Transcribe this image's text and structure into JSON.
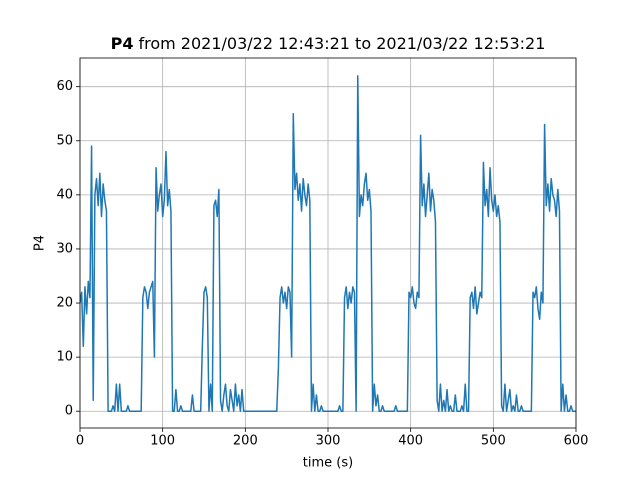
{
  "chart_data": {
    "type": "line",
    "title_bold": "P4",
    "title": "from 2021/03/22 12:43:21 to 2021/03/22 12:53:21",
    "xlabel": "time (s)",
    "ylabel": "P4",
    "xlim": [
      0,
      600
    ],
    "ylim": [
      -3.1,
      65.3
    ],
    "xticks": [
      0,
      100,
      200,
      300,
      400,
      500,
      600
    ],
    "yticks": [
      0,
      10,
      20,
      30,
      40,
      50,
      60
    ],
    "grid": true,
    "x": [
      0,
      2,
      4,
      6,
      8,
      10,
      12,
      14,
      16,
      18,
      20,
      22,
      24,
      26,
      28,
      30,
      32,
      34,
      36,
      38,
      40,
      42,
      44,
      46,
      48,
      50,
      52,
      54,
      56,
      58,
      60,
      62,
      64,
      66,
      68,
      70,
      72,
      74,
      76,
      78,
      80,
      82,
      84,
      86,
      88,
      90,
      92,
      94,
      96,
      98,
      100,
      102,
      104,
      106,
      108,
      110,
      112,
      114,
      116,
      118,
      120,
      122,
      124,
      126,
      128,
      130,
      132,
      134,
      136,
      138,
      140,
      142,
      144,
      146,
      148,
      150,
      152,
      154,
      156,
      158,
      160,
      162,
      164,
      166,
      168,
      170,
      172,
      174,
      176,
      178,
      180,
      182,
      184,
      186,
      188,
      190,
      192,
      194,
      196,
      198,
      200,
      202,
      204,
      206,
      208,
      210,
      212,
      214,
      216,
      218,
      220,
      222,
      224,
      226,
      228,
      230,
      232,
      234,
      236,
      238,
      240,
      242,
      244,
      246,
      248,
      250,
      252,
      254,
      256,
      258,
      260,
      262,
      264,
      266,
      268,
      270,
      272,
      274,
      276,
      278,
      280,
      282,
      284,
      286,
      288,
      290,
      292,
      294,
      296,
      298,
      300,
      302,
      304,
      306,
      308,
      310,
      312,
      314,
      316,
      318,
      320,
      322,
      324,
      326,
      328,
      330,
      332,
      334,
      336,
      338,
      340,
      342,
      344,
      346,
      348,
      350,
      352,
      354,
      356,
      358,
      360,
      362,
      364,
      366,
      368,
      370,
      372,
      374,
      376,
      378,
      380,
      382,
      384,
      386,
      388,
      390,
      392,
      394,
      396,
      398,
      400,
      402,
      404,
      406,
      408,
      410,
      412,
      414,
      416,
      418,
      420,
      422,
      424,
      426,
      428,
      430,
      432,
      434,
      436,
      438,
      440,
      442,
      444,
      446,
      448,
      450,
      452,
      454,
      456,
      458,
      460,
      462,
      464,
      466,
      468,
      470,
      472,
      474,
      476,
      478,
      480,
      482,
      484,
      486,
      488,
      490,
      492,
      494,
      496,
      498,
      500,
      502,
      504,
      506,
      508,
      510,
      512,
      514,
      516,
      518,
      520,
      522,
      524,
      526,
      528,
      530,
      532,
      534,
      536,
      538,
      540,
      542,
      544,
      546,
      548,
      550,
      552,
      554,
      556,
      558,
      560,
      562,
      564,
      566,
      568,
      570,
      572,
      574,
      576,
      578,
      580,
      582,
      584,
      586,
      588,
      590,
      592,
      594,
      596,
      598,
      600
    ],
    "series": [
      {
        "color": "#1f77b4",
        "values": [
          20,
          22,
          12,
          23,
          18,
          24,
          21,
          49,
          2,
          40,
          43,
          38,
          44,
          36,
          42,
          39,
          37,
          0,
          0,
          0,
          1,
          0,
          5,
          0,
          5,
          0,
          0,
          0,
          0,
          1,
          0,
          0,
          0,
          0,
          0,
          0,
          0,
          0,
          21,
          23,
          22,
          19,
          22,
          23,
          24,
          10,
          45,
          37,
          40,
          42,
          36,
          39,
          48,
          38,
          41,
          37,
          0,
          0,
          4,
          0,
          0,
          1,
          0,
          0,
          0,
          0,
          0,
          0,
          3,
          0,
          0,
          0,
          0,
          0,
          12,
          22,
          23,
          21,
          0,
          5,
          0,
          38,
          39,
          36,
          41,
          2,
          0,
          3,
          5,
          1,
          0,
          4,
          2,
          0,
          5,
          1,
          3,
          0,
          4,
          0,
          0,
          0,
          0,
          0,
          0,
          0,
          0,
          0,
          0,
          0,
          0,
          0,
          0,
          0,
          0,
          0,
          0,
          0,
          0,
          0,
          8,
          21,
          23,
          20,
          22,
          19,
          23,
          22,
          10,
          55,
          41,
          44,
          39,
          42,
          37,
          43,
          40,
          38,
          42,
          39,
          0,
          5,
          0,
          3,
          0,
          0,
          1,
          0,
          0,
          0,
          0,
          0,
          0,
          0,
          0,
          0,
          0,
          1,
          0,
          0,
          21,
          23,
          19,
          22,
          20,
          23,
          22,
          0,
          62,
          36,
          40,
          38,
          42,
          44,
          39,
          41,
          37,
          0,
          5,
          1,
          3,
          0,
          0,
          1,
          0,
          0,
          0,
          0,
          0,
          0,
          0,
          1,
          0,
          0,
          0,
          0,
          0,
          0,
          0,
          22,
          21,
          23,
          20,
          19,
          22,
          21,
          51,
          38,
          42,
          36,
          40,
          44,
          37,
          41,
          39,
          35,
          2,
          0,
          5,
          0,
          2,
          0,
          4,
          0,
          1,
          0,
          0,
          3,
          0,
          0,
          0,
          1,
          0,
          5,
          0,
          0,
          21,
          22,
          19,
          23,
          18,
          20,
          22,
          21,
          46,
          38,
          41,
          36,
          45,
          39,
          37,
          40,
          36,
          38,
          35,
          1,
          0,
          5,
          0,
          2,
          4,
          0,
          1,
          0,
          3,
          0,
          0,
          1,
          0,
          0,
          0,
          0,
          0,
          0,
          22,
          21,
          23,
          19,
          17,
          22,
          20,
          53,
          38,
          42,
          37,
          43,
          40,
          39,
          36,
          41,
          37,
          0,
          5,
          0,
          3,
          0,
          0,
          1,
          0,
          0,
          0
        ]
      }
    ]
  }
}
